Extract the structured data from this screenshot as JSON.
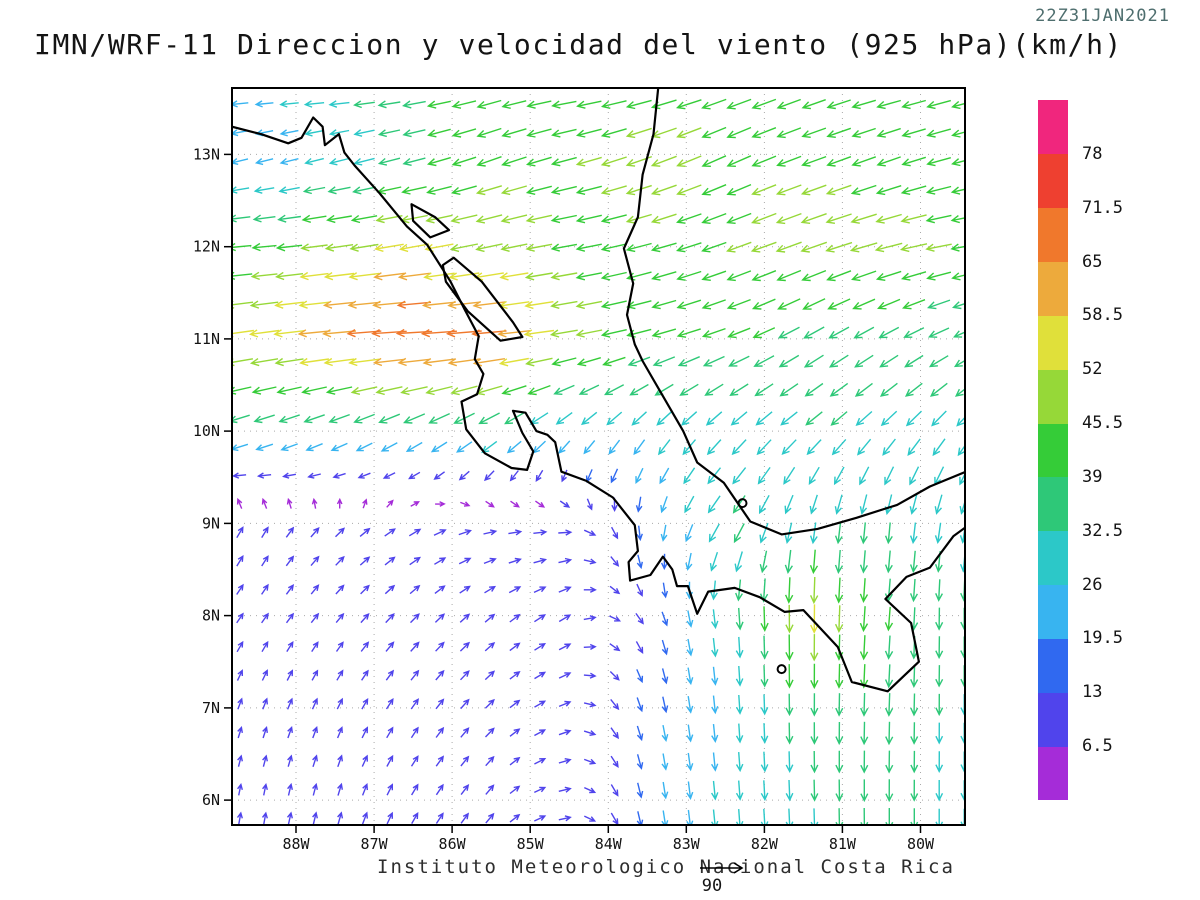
{
  "header": {
    "title": "IMN/WRF-11 Direccion y velocidad del viento (925 hPa)(km/h)",
    "timestamp": "22Z31JAN2021"
  },
  "footer": {
    "caption": "Instituto Meteorologico Nacional Costa Rica",
    "reference_arrow_label": "90"
  },
  "axes": {
    "lat_ticks": [
      "13N",
      "12N",
      "11N",
      "10N",
      "9N",
      "8N",
      "7N",
      "6N"
    ],
    "lat_values": [
      13,
      12,
      11,
      10,
      9,
      8,
      7,
      6
    ],
    "lon_ticks": [
      "88W",
      "87W",
      "86W",
      "85W",
      "84W",
      "83W",
      "82W",
      "81W",
      "80W"
    ],
    "lon_values": [
      -88,
      -87,
      -86,
      -85,
      -84,
      -83,
      -82,
      -81,
      -80
    ]
  },
  "colorbar": {
    "levels": [
      6.5,
      13,
      19.5,
      26,
      32.5,
      39,
      45.5,
      52,
      58.5,
      65,
      71.5,
      78
    ],
    "colors": [
      "#a52cd8",
      "#5044ec",
      "#3069f0",
      "#38b4f0",
      "#2cc8c8",
      "#2ec878",
      "#35cc38",
      "#96d838",
      "#e0e03a",
      "#edaa3c",
      "#f0782c",
      "#ee4030",
      "#f0267d"
    ]
  },
  "chart_data": {
    "type": "quiver",
    "units": "km/h",
    "reference_speed": 90,
    "lon_range": [
      -88.82,
      -79.43
    ],
    "lat_range": [
      5.73,
      13.72
    ],
    "grid": {
      "lats": [
        13.6,
        13,
        12,
        11,
        10,
        9,
        8,
        7,
        6
      ],
      "lons": [
        -88.5,
        -87.5,
        -86.5,
        -85.5,
        -84.5,
        -83.5,
        -82.5,
        -81.5,
        -80.5,
        -79.6
      ],
      "dir_deg": [
        [
          185,
          185,
          190,
          195,
          190,
          195,
          200,
          200,
          195,
          195
        ],
        [
          195,
          195,
          195,
          200,
          195,
          200,
          205,
          200,
          200,
          195
        ],
        [
          185,
          188,
          190,
          192,
          190,
          195,
          200,
          200,
          195,
          190
        ],
        [
          188,
          185,
          183,
          185,
          190,
          195,
          200,
          210,
          210,
          205
        ],
        [
          200,
          205,
          210,
          215,
          225,
          230,
          225,
          220,
          225,
          230
        ],
        [
          60,
          45,
          30,
          10,
          0,
          270,
          235,
          260,
          265,
          260
        ],
        [
          55,
          50,
          45,
          40,
          30,
          300,
          275,
          270,
          265,
          270
        ],
        [
          70,
          65,
          55,
          45,
          20,
          285,
          275,
          270,
          268,
          270
        ],
        [
          80,
          75,
          60,
          50,
          10,
          280,
          275,
          272,
          270,
          270
        ]
      ],
      "speed_kmh": [
        [
          24,
          30,
          38,
          42,
          42,
          45,
          45,
          42,
          42,
          42
        ],
        [
          22,
          28,
          36,
          45,
          45,
          48,
          45,
          45,
          42,
          42
        ],
        [
          40,
          50,
          55,
          48,
          45,
          45,
          45,
          48,
          50,
          45
        ],
        [
          55,
          65,
          72,
          70,
          48,
          42,
          40,
          38,
          35,
          35
        ],
        [
          30,
          30,
          32,
          34,
          26,
          28,
          30,
          32,
          32,
          32
        ],
        [
          10,
          10,
          12,
          12,
          12,
          18,
          35,
          30,
          32,
          30
        ],
        [
          8,
          8,
          10,
          10,
          12,
          12,
          30,
          55,
          40,
          35
        ],
        [
          8,
          8,
          10,
          10,
          10,
          18,
          25,
          35,
          38,
          32
        ],
        [
          8,
          10,
          10,
          10,
          10,
          20,
          28,
          32,
          35,
          30
        ]
      ]
    },
    "coastline": [
      [
        [
          -88.82,
          13.3
        ],
        [
          -88.45,
          13.22
        ],
        [
          -88.1,
          13.12
        ],
        [
          -87.93,
          13.18
        ],
        [
          -87.78,
          13.4
        ],
        [
          -87.66,
          13.3
        ],
        [
          -87.63,
          13.1
        ],
        [
          -87.45,
          13.22
        ],
        [
          -87.38,
          13.02
        ],
        [
          -87.25,
          12.88
        ],
        [
          -86.93,
          12.58
        ],
        [
          -86.58,
          12.22
        ],
        [
          -86.32,
          12.02
        ],
        [
          -86.02,
          11.62
        ],
        [
          -85.84,
          11.32
        ],
        [
          -85.66,
          11.03
        ],
        [
          -85.71,
          10.78
        ],
        [
          -85.6,
          10.62
        ],
        [
          -85.68,
          10.4
        ],
        [
          -85.88,
          10.32
        ],
        [
          -85.82,
          10.02
        ],
        [
          -85.58,
          9.76
        ],
        [
          -85.24,
          9.6
        ],
        [
          -85.04,
          9.58
        ],
        [
          -84.96,
          9.78
        ],
        [
          -85.1,
          9.98
        ],
        [
          -85.22,
          10.22
        ],
        [
          -85.06,
          10.2
        ],
        [
          -84.92,
          10.0
        ],
        [
          -84.78,
          9.96
        ],
        [
          -84.68,
          9.88
        ],
        [
          -84.6,
          9.56
        ],
        [
          -84.28,
          9.46
        ],
        [
          -83.94,
          9.28
        ],
        [
          -83.66,
          8.98
        ],
        [
          -83.62,
          8.7
        ],
        [
          -83.74,
          8.58
        ],
        [
          -83.72,
          8.38
        ],
        [
          -83.46,
          8.44
        ],
        [
          -83.3,
          8.64
        ],
        [
          -83.18,
          8.5
        ],
        [
          -83.12,
          8.32
        ],
        [
          -82.98,
          8.32
        ],
        [
          -82.86,
          8.02
        ],
        [
          -82.72,
          8.26
        ],
        [
          -82.38,
          8.3
        ],
        [
          -82.06,
          8.2
        ],
        [
          -81.74,
          8.04
        ],
        [
          -81.5,
          8.06
        ],
        [
          -81.06,
          7.66
        ],
        [
          -80.88,
          7.28
        ],
        [
          -80.42,
          7.18
        ],
        [
          -80.02,
          7.5
        ],
        [
          -80.12,
          7.92
        ],
        [
          -80.45,
          8.18
        ],
        [
          -80.18,
          8.42
        ],
        [
          -79.88,
          8.52
        ],
        [
          -79.58,
          8.86
        ],
        [
          -79.42,
          8.96
        ]
      ],
      [
        [
          -79.42,
          9.56
        ],
        [
          -79.88,
          9.4
        ],
        [
          -80.3,
          9.2
        ],
        [
          -80.82,
          9.06
        ],
        [
          -81.32,
          8.94
        ],
        [
          -81.78,
          8.88
        ],
        [
          -82.18,
          9.02
        ],
        [
          -82.52,
          9.44
        ],
        [
          -82.86,
          9.66
        ],
        [
          -83.04,
          10.0
        ],
        [
          -83.3,
          10.38
        ],
        [
          -83.56,
          10.76
        ],
        [
          -83.66,
          10.94
        ],
        [
          -83.76,
          11.26
        ],
        [
          -83.68,
          11.6
        ],
        [
          -83.8,
          11.98
        ],
        [
          -83.62,
          12.32
        ],
        [
          -83.56,
          12.78
        ],
        [
          -83.42,
          13.22
        ],
        [
          -83.36,
          13.72
        ]
      ]
    ],
    "lakes": [
      [
        [
          -85.98,
          11.88
        ],
        [
          -85.62,
          11.62
        ],
        [
          -85.22,
          11.18
        ],
        [
          -85.1,
          11.02
        ],
        [
          -85.38,
          10.98
        ],
        [
          -85.8,
          11.3
        ],
        [
          -86.08,
          11.62
        ],
        [
          -86.12,
          11.8
        ]
      ],
      [
        [
          -86.52,
          12.46
        ],
        [
          -86.22,
          12.32
        ],
        [
          -86.04,
          12.18
        ],
        [
          -86.28,
          12.1
        ],
        [
          -86.5,
          12.28
        ]
      ]
    ],
    "islands": [
      [
        -81.78,
        7.42
      ],
      [
        -82.28,
        9.22
      ]
    ]
  }
}
